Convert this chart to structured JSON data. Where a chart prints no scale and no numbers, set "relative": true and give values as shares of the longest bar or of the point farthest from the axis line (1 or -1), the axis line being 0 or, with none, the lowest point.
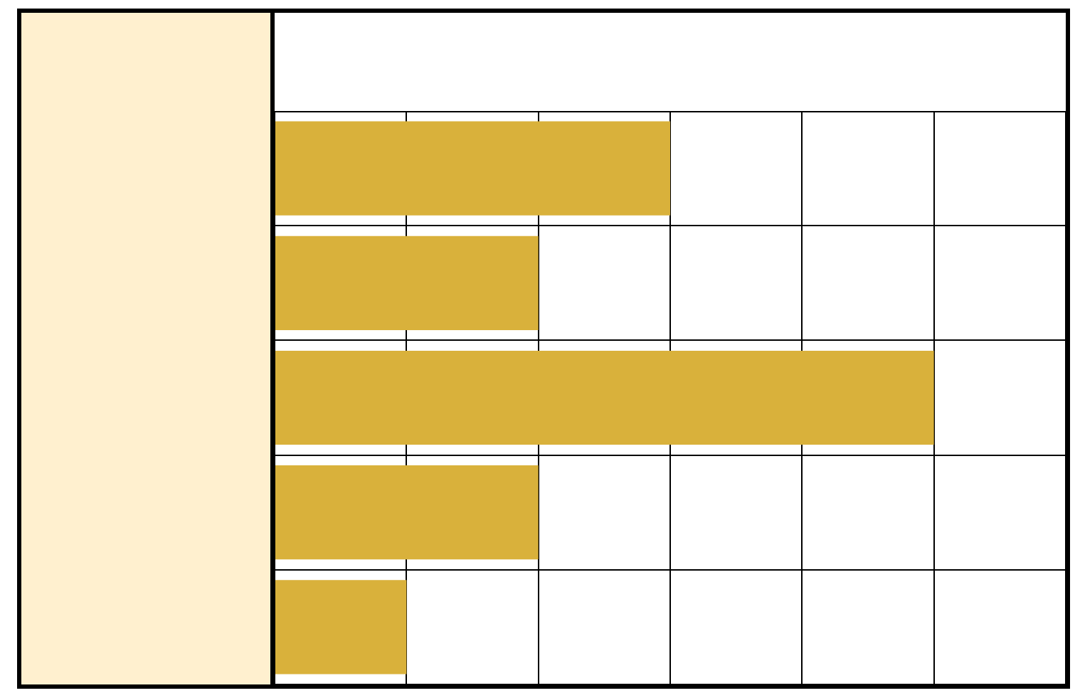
{
  "chart_data": {
    "type": "bar",
    "orientation": "horizontal",
    "relative": true,
    "grid": true,
    "legend": false,
    "categories": [
      null,
      null,
      null,
      null,
      null
    ],
    "values": [
      0.6,
      0.4,
      1,
      0.4,
      0.2
    ],
    "color": "#d9b13b"
  }
}
